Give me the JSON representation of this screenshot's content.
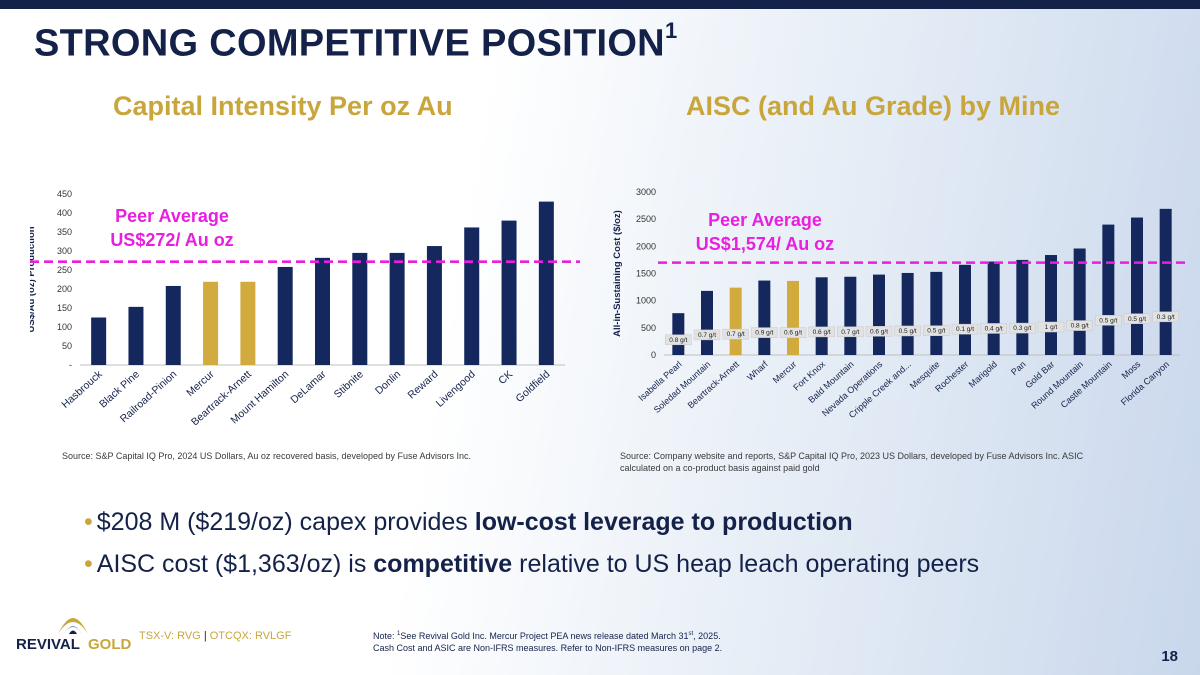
{
  "title": {
    "text": "STRONG COMPETITIVE POSITION",
    "sup": "1"
  },
  "chart_data": [
    {
      "type": "bar",
      "title": "Capital Intensity Per oz Au",
      "ylabel": "US$/Au (oz) Production",
      "ylim": [
        0,
        450
      ],
      "yticks": [
        "-",
        "50",
        "100",
        "150",
        "200",
        "250",
        "300",
        "350",
        "400",
        "450"
      ],
      "categories": [
        "Hasbrouck",
        "Black Pine",
        "Railroad-Pinion",
        "Mercur",
        "Beartrack-Arnett",
        "Mount Hamilton",
        "DeLamar",
        "Stibnite",
        "Donlin",
        "Reward",
        "Livengood",
        "CK",
        "Goldfield"
      ],
      "values": [
        125,
        153,
        208,
        219,
        219,
        258,
        282,
        295,
        295,
        313,
        362,
        380,
        430
      ],
      "highlight": [
        "Mercur",
        "Beartrack-Arnett"
      ],
      "peer_average": 272,
      "peer_label_line1": "Peer Average",
      "peer_label_line2": "US$272/ Au oz",
      "colors": {
        "bar": "#14285e",
        "highlight": "#d1ab3e",
        "peer": "#e81ee0"
      }
    },
    {
      "type": "bar",
      "title": "AISC (and Au Grade) by Mine",
      "ylabel": "All-in-Sustaining Cost ($/oz)",
      "ylim": [
        0,
        3000
      ],
      "yticks": [
        "0",
        "500",
        "1000",
        "1500",
        "2000",
        "2500",
        "3000"
      ],
      "categories": [
        "Isabella Pearl",
        "Soledad Mountain",
        "Beartrack-Arnett",
        "Wharf",
        "Mercur",
        "Fort Knox",
        "Bald Mountain",
        "Nevada Operations",
        "Cripple Creek and...",
        "Mesquite",
        "Rochester",
        "Marigold",
        "Pan",
        "Gold Bar",
        "Round Mountain",
        "Castle Mountain",
        "Moss",
        "Florida Canyon"
      ],
      "values": [
        770,
        1180,
        1240,
        1370,
        1363,
        1430,
        1440,
        1480,
        1510,
        1530,
        1660,
        1720,
        1750,
        1840,
        1960,
        2400,
        2530,
        2690
      ],
      "grades": [
        "0.8 g/t",
        "0.7 g/t",
        "0.7 g/t",
        "0.9 g/t",
        "0.6 g/t",
        "0.6 g/t",
        "0.7 g/t",
        "0.6 g/t",
        "0.5 g/t",
        "0.5 g/t",
        "0.1 g/t",
        "0.4 g/t",
        "0.3 g/t",
        "1 g/t",
        "0.8 g/t",
        "0.5 g/t",
        "0.5 g/t",
        "0.3 g/t"
      ],
      "highlight": [
        "Beartrack-Arnett",
        "Mercur"
      ],
      "peer_average": 1574,
      "peer_label_line1": "Peer Average",
      "peer_label_line2": "US$1,574/ Au oz",
      "colors": {
        "bar": "#14285e",
        "highlight": "#d1ab3e",
        "peer": "#e81ee0"
      }
    }
  ],
  "sources": {
    "left": "Source: S&P Capital IQ Pro, 2024 US Dollars, Au oz recovered basis, developed by Fuse Advisors Inc.",
    "right": "Source: Company website and reports, S&P Capital IQ Pro, 2023 US Dollars, developed by Fuse Advisors Inc. ASIC calculated on a co-product basis against paid gold"
  },
  "bullets": [
    {
      "pre": "$208 M ($219/oz) capex provides ",
      "bold": "low-cost leverage to production",
      "post": ""
    },
    {
      "pre": "AISC cost ($1,363/oz) is ",
      "bold": "competitive",
      "post": " relative to US heap leach operating peers"
    }
  ],
  "logo": {
    "text_revival": "REVIVAL",
    "text_gold": "GOLD"
  },
  "ticker": {
    "left": "TSX-V: RVG",
    "sep": "|",
    "right": "OTCQX: RVLGF"
  },
  "note": {
    "prefix": "Note:  ",
    "sup": "1",
    "line1": "See Revival Gold Inc. Mercur Project PEA news release dated March 31",
    "line1_sup": "st",
    "line1_end": ", 2025.",
    "line2": "Cash Cost and ASIC are Non-IFRS measures. Refer to Non-IFRS measures on page 2."
  },
  "page_number": "18",
  "colors": {
    "navy": "#14224a",
    "gold": "#c9a63c"
  }
}
